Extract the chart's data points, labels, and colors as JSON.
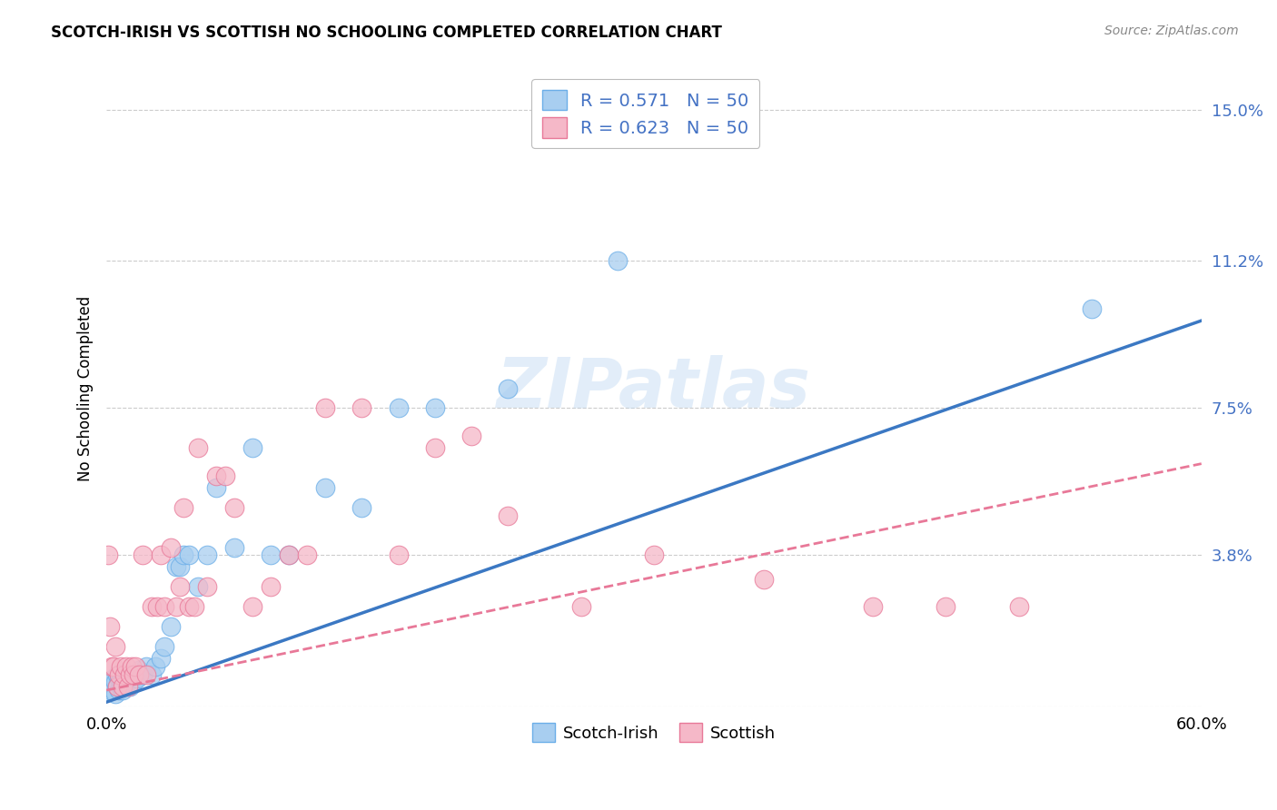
{
  "title": "SCOTCH-IRISH VS SCOTTISH NO SCHOOLING COMPLETED CORRELATION CHART",
  "source": "Source: ZipAtlas.com",
  "ylabel": "No Schooling Completed",
  "watermark": "ZIPatlas",
  "xlim": [
    0.0,
    0.6
  ],
  "ylim": [
    0.0,
    0.16
  ],
  "ytick_vals": [
    0.15,
    0.112,
    0.075,
    0.038
  ],
  "grid_yticks": [
    0.0,
    0.038,
    0.075,
    0.112,
    0.15
  ],
  "scotch_irish_fill": "#A8CEF0",
  "scotch_irish_edge": "#6BAEE8",
  "scottish_fill": "#F5B8C8",
  "scottish_edge": "#E87898",
  "line_blue": "#3B78C3",
  "line_pink": "#E87898",
  "ytick_color": "#4472C4",
  "scotch_irish_R": 0.571,
  "scotch_irish_N": 50,
  "scottish_R": 0.623,
  "scottish_N": 50,
  "scotch_irish_x": [
    0.001,
    0.002,
    0.003,
    0.004,
    0.004,
    0.005,
    0.005,
    0.006,
    0.006,
    0.007,
    0.007,
    0.008,
    0.008,
    0.009,
    0.009,
    0.01,
    0.01,
    0.011,
    0.012,
    0.013,
    0.014,
    0.015,
    0.016,
    0.017,
    0.018,
    0.02,
    0.022,
    0.025,
    0.027,
    0.03,
    0.032,
    0.035,
    0.038,
    0.04,
    0.042,
    0.045,
    0.05,
    0.055,
    0.06,
    0.07,
    0.08,
    0.09,
    0.1,
    0.12,
    0.14,
    0.16,
    0.18,
    0.22,
    0.28,
    0.54
  ],
  "scotch_irish_y": [
    0.005,
    0.004,
    0.006,
    0.004,
    0.007,
    0.003,
    0.006,
    0.005,
    0.008,
    0.004,
    0.007,
    0.005,
    0.008,
    0.004,
    0.006,
    0.005,
    0.007,
    0.006,
    0.008,
    0.005,
    0.007,
    0.006,
    0.008,
    0.007,
    0.009,
    0.008,
    0.01,
    0.008,
    0.01,
    0.012,
    0.015,
    0.02,
    0.035,
    0.035,
    0.038,
    0.038,
    0.03,
    0.038,
    0.055,
    0.04,
    0.065,
    0.038,
    0.038,
    0.055,
    0.05,
    0.075,
    0.075,
    0.08,
    0.112,
    0.1
  ],
  "scottish_x": [
    0.001,
    0.002,
    0.003,
    0.004,
    0.005,
    0.006,
    0.007,
    0.008,
    0.009,
    0.01,
    0.011,
    0.012,
    0.013,
    0.014,
    0.015,
    0.016,
    0.018,
    0.02,
    0.022,
    0.025,
    0.028,
    0.03,
    0.032,
    0.035,
    0.038,
    0.04,
    0.042,
    0.045,
    0.048,
    0.05,
    0.055,
    0.06,
    0.065,
    0.07,
    0.08,
    0.09,
    0.1,
    0.11,
    0.12,
    0.14,
    0.16,
    0.18,
    0.2,
    0.22,
    0.26,
    0.3,
    0.36,
    0.42,
    0.46,
    0.5
  ],
  "scottish_y": [
    0.038,
    0.02,
    0.01,
    0.01,
    0.015,
    0.005,
    0.008,
    0.01,
    0.005,
    0.008,
    0.01,
    0.005,
    0.008,
    0.01,
    0.008,
    0.01,
    0.008,
    0.038,
    0.008,
    0.025,
    0.025,
    0.038,
    0.025,
    0.04,
    0.025,
    0.03,
    0.05,
    0.025,
    0.025,
    0.065,
    0.03,
    0.058,
    0.058,
    0.05,
    0.025,
    0.03,
    0.038,
    0.038,
    0.075,
    0.075,
    0.038,
    0.065,
    0.068,
    0.048,
    0.025,
    0.038,
    0.032,
    0.025,
    0.025,
    0.025
  ],
  "legend_label_scotch_irish": "Scotch-Irish",
  "legend_label_scottish": "Scottish",
  "background_color": "#FFFFFF"
}
